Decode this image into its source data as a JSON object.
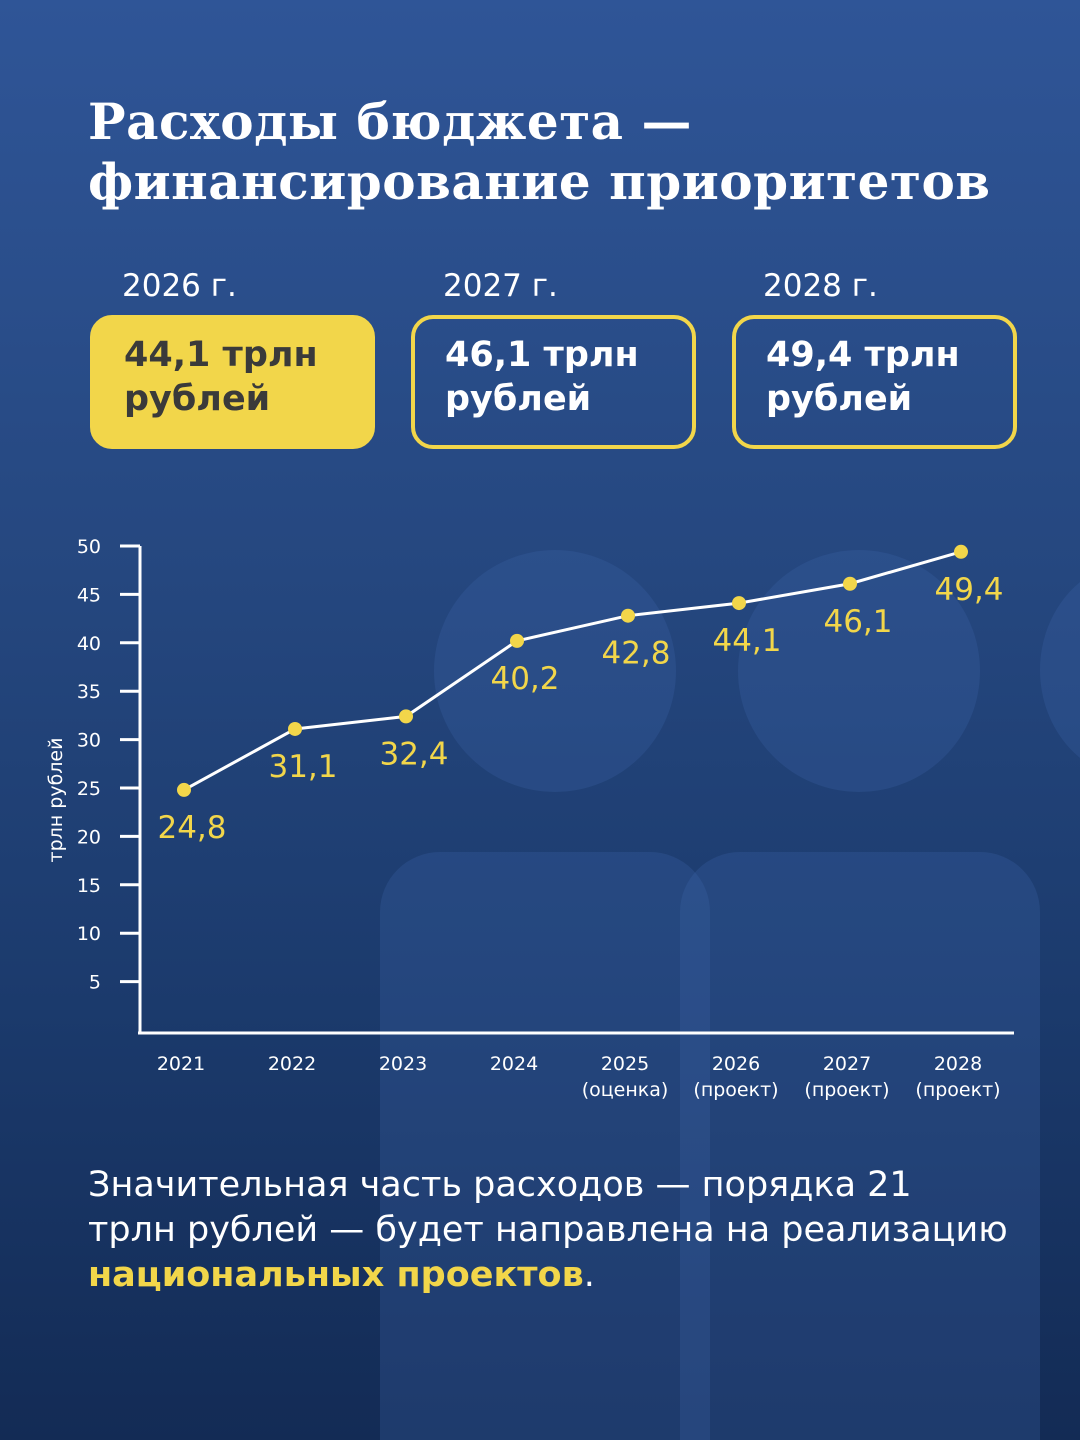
{
  "title_lines": [
    "Расходы бюджета —",
    "финансирование приоритетов"
  ],
  "cards": [
    {
      "year": "2026 г.",
      "value_line1": "44,1 трлн",
      "value_line2": "рублей",
      "highlighted": true
    },
    {
      "year": "2027 г.",
      "value_line1": "46,1 трлн",
      "value_line2": "рублей",
      "highlighted": false
    },
    {
      "year": "2028 г.",
      "value_line1": "49,4 трлн",
      "value_line2": "рублей",
      "highlighted": false
    }
  ],
  "colors": {
    "accent": "#f2d64a",
    "background_top": "#2f5597",
    "background_bottom": "#132b55",
    "line": "#ffffff"
  },
  "chart_data": {
    "type": "line",
    "ylabel": "трлн рублей",
    "xlabel": "",
    "ylim": [
      0,
      50
    ],
    "yticks": [
      5,
      10,
      15,
      20,
      25,
      30,
      35,
      40,
      45,
      50
    ],
    "grid": false,
    "categories": [
      [
        "2021",
        ""
      ],
      [
        "2022",
        ""
      ],
      [
        "2023",
        ""
      ],
      [
        "2024",
        ""
      ],
      [
        "2025",
        "(оценка)"
      ],
      [
        "2026",
        "(проект)"
      ],
      [
        "2027",
        "(проект)"
      ],
      [
        "2028",
        "(проект)"
      ]
    ],
    "values": [
      24.8,
      31.1,
      32.4,
      40.2,
      42.8,
      44.1,
      46.1,
      49.4
    ],
    "data_labels": [
      "24,8",
      "31,1",
      "32,4",
      "40,2",
      "42,8",
      "44,1",
      "46,1",
      "49,4"
    ]
  },
  "footer": {
    "text1": "Значительная часть расходов — порядка 21 трлн рублей — будет направлена на реализацию ",
    "highlight": "национальных проектов",
    "text2": "."
  }
}
